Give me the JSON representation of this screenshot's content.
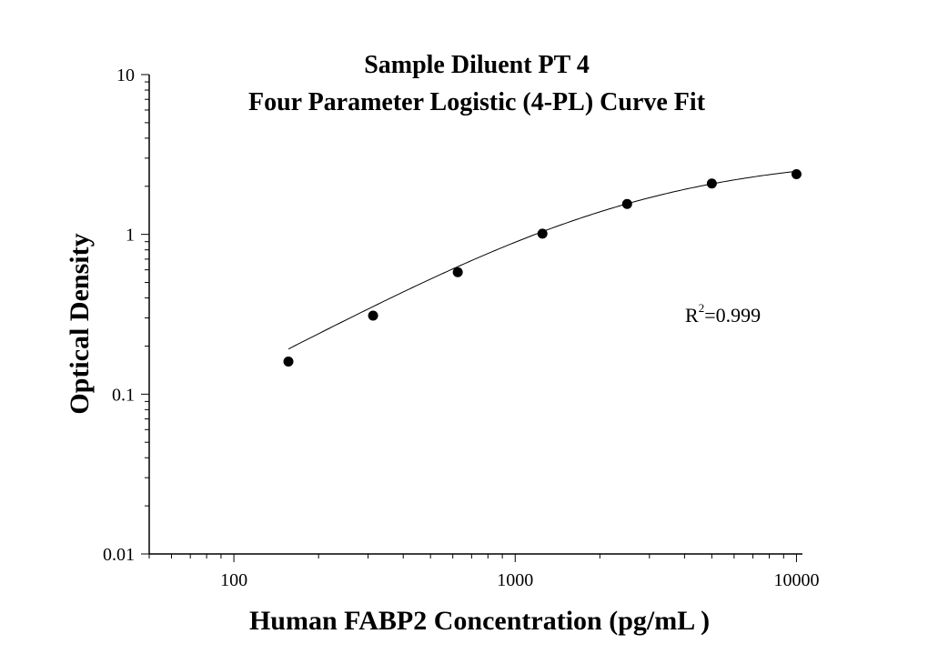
{
  "chart_data": {
    "type": "scatter",
    "title": "Sample Diluent PT 4",
    "subtitle": "Four Parameter Logistic (4-PL) Curve Fit",
    "xlabel": "Human FABP2 Concentration (pg/mL )",
    "ylabel": "Optical Density",
    "xscale": "log",
    "yscale": "log",
    "xlim": [
      50,
      10500
    ],
    "ylim": [
      0.01,
      10
    ],
    "x_ticks": [
      {
        "value": 100,
        "label": "100"
      },
      {
        "value": 1000,
        "label": "1000"
      },
      {
        "value": 10000,
        "label": "10000"
      }
    ],
    "y_ticks": [
      {
        "value": 10,
        "label": "10"
      },
      {
        "value": 1,
        "label": "1"
      },
      {
        "value": 0.1,
        "label": "0.1"
      },
      {
        "value": 0.01,
        "label": "0.01"
      }
    ],
    "grid": false,
    "series": [
      {
        "x": [
          156.25,
          312.5,
          625,
          1250,
          2500,
          5000,
          10000
        ],
        "y": [
          0.16,
          0.31,
          0.58,
          1.01,
          1.55,
          2.08,
          2.38
        ],
        "marker": "circle",
        "color": "#000000"
      }
    ],
    "fit_curve": {
      "model": "4-PL",
      "x_range": [
        156.25,
        10000
      ],
      "params": {
        "A": 0.01,
        "B": 1.0,
        "C": 2500,
        "D": 3.1
      },
      "color": "#000000"
    },
    "annotation": {
      "base": "R",
      "superscript": "2",
      "value": "=0.999"
    }
  }
}
